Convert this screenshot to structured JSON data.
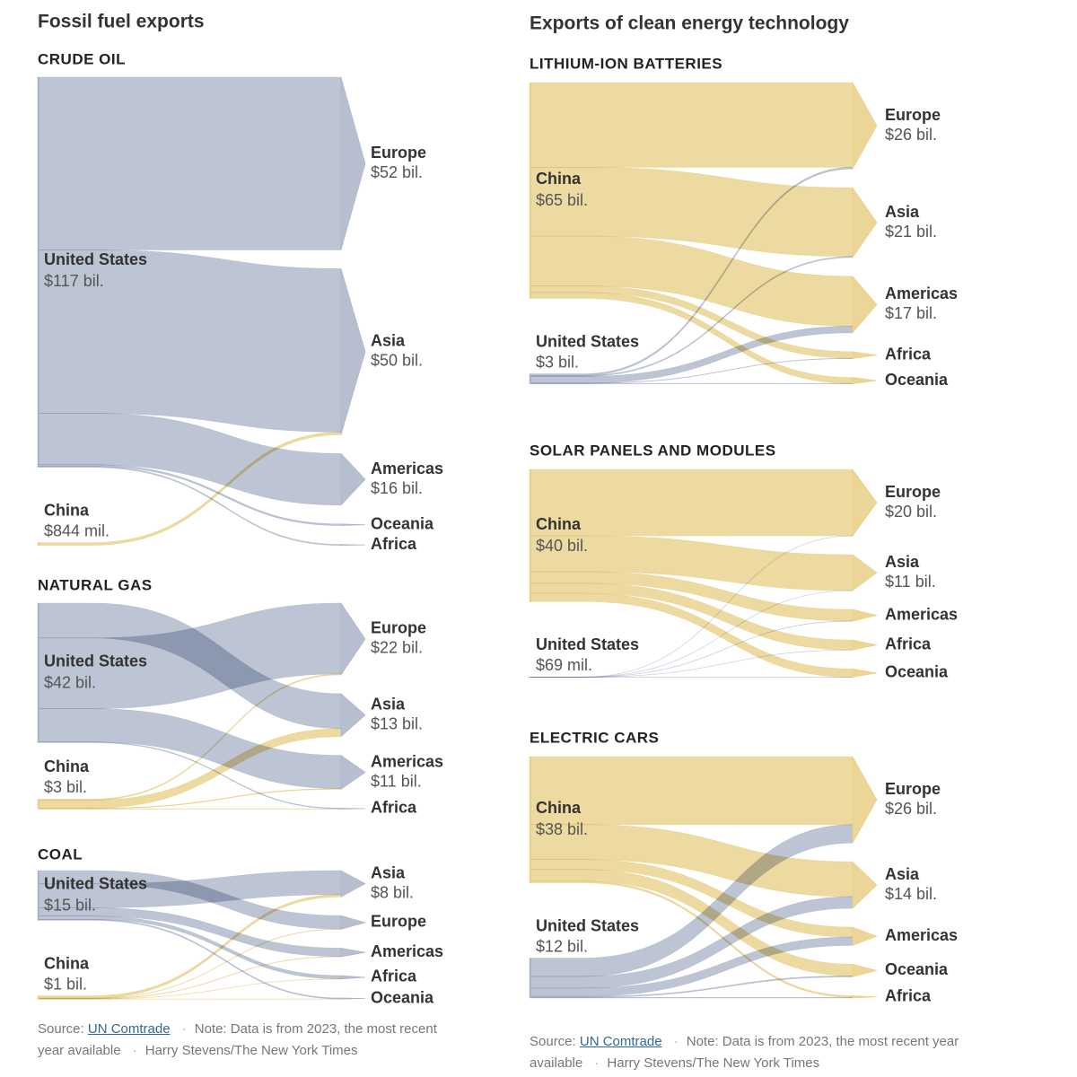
{
  "headings": [
    "Fossil fuel exports",
    "Exports of clean energy technology"
  ],
  "notes": [
    {
      "source_label": "Source:",
      "source": "UN Comtrade",
      "note": "Note: Data is from 2023, the most recent year available",
      "credit": "Harry Stevens/The New York Times"
    },
    {
      "source_label": "Source:",
      "source": "UN Comtrade",
      "note": "Note: Data is from 2023, the most recent year available",
      "credit": "Harry Stevens/The New York Times"
    }
  ],
  "chart_data": [
    {
      "type": "sankey",
      "title": "CRUDE OIL",
      "sources": [
        {
          "name": "United States",
          "value": 117,
          "label": "$117 bil.",
          "color": "#aab3c8"
        },
        {
          "name": "China",
          "value": 0.844,
          "label": "$844 mil.",
          "color": "#e8cf86"
        }
      ],
      "targets": [
        {
          "name": "Europe",
          "value": 52,
          "label": "$52 bil."
        },
        {
          "name": "Asia",
          "value": 50,
          "label": "$50 bil."
        },
        {
          "name": "Americas",
          "value": 16,
          "label": "$16 bil."
        },
        {
          "name": "Oceania"
        },
        {
          "name": "Africa"
        }
      ],
      "flows": [
        {
          "source": "United States",
          "target": "Europe",
          "value": 52
        },
        {
          "source": "United States",
          "target": "Asia",
          "value": 49.2
        },
        {
          "source": "United States",
          "target": "Americas",
          "value": 15.5
        },
        {
          "source": "United States",
          "target": "Oceania",
          "value": 0.5
        },
        {
          "source": "United States",
          "target": "Africa",
          "value": 0.3
        },
        {
          "source": "China",
          "target": "Asia",
          "value": 0.8
        }
      ]
    },
    {
      "type": "sankey",
      "title": "NATURAL GAS",
      "sources": [
        {
          "name": "United States",
          "value": 42,
          "label": "$42 bil.",
          "color": "#aab3c8"
        },
        {
          "name": "China",
          "value": 3,
          "label": "$3 bil.",
          "color": "#e8cf86"
        }
      ],
      "targets": [
        {
          "name": "Europe",
          "value": 22,
          "label": "$22 bil."
        },
        {
          "name": "Asia",
          "value": 13,
          "label": "$13 bil."
        },
        {
          "name": "Americas",
          "value": 11,
          "label": "$11 bil."
        },
        {
          "name": "Africa"
        }
      ],
      "flows": [
        {
          "source": "United States",
          "target": "Asia",
          "value": 10.5
        },
        {
          "source": "United States",
          "target": "Europe",
          "value": 21.3
        },
        {
          "source": "United States",
          "target": "Americas",
          "value": 10
        },
        {
          "source": "United States",
          "target": "Africa",
          "value": 0.2
        },
        {
          "source": "China",
          "target": "Europe",
          "value": 0.3
        },
        {
          "source": "China",
          "target": "Asia",
          "value": 2.4
        },
        {
          "source": "China",
          "target": "Americas",
          "value": 0.2
        },
        {
          "source": "China",
          "target": "Africa",
          "value": 0.1
        }
      ]
    },
    {
      "type": "sankey",
      "title": "COAL",
      "sources": [
        {
          "name": "United States",
          "value": 15,
          "label": "$15 bil.",
          "color": "#aab3c8"
        },
        {
          "name": "China",
          "value": 1,
          "label": "$1 bil.",
          "color": "#e8cf86"
        }
      ],
      "targets": [
        {
          "name": "Asia",
          "value": 8,
          "label": "$8 bil."
        },
        {
          "name": "Europe"
        },
        {
          "name": "Americas"
        },
        {
          "name": "Africa"
        },
        {
          "name": "Oceania"
        }
      ],
      "flows": [
        {
          "source": "United States",
          "target": "Europe",
          "value": 4
        },
        {
          "source": "United States",
          "target": "Asia",
          "value": 7.2
        },
        {
          "source": "United States",
          "target": "Americas",
          "value": 2.5
        },
        {
          "source": "United States",
          "target": "Africa",
          "value": 1
        },
        {
          "source": "United States",
          "target": "Oceania",
          "value": 0.3
        },
        {
          "source": "China",
          "target": "Asia",
          "value": 0.7
        },
        {
          "source": "China",
          "target": "Europe",
          "value": 0.1
        },
        {
          "source": "China",
          "target": "Americas",
          "value": 0.1
        },
        {
          "source": "China",
          "target": "Africa",
          "value": 0.05
        },
        {
          "source": "China",
          "target": "Oceania",
          "value": 0.05
        }
      ]
    },
    {
      "type": "sankey",
      "title": "LITHIUM-ION BATTERIES",
      "sources": [
        {
          "name": "China",
          "value": 65,
          "label": "$65 bil.",
          "color": "#e8cf86"
        },
        {
          "name": "United States",
          "value": 3,
          "label": "$3 bil.",
          "color": "#aab3c8"
        }
      ],
      "targets": [
        {
          "name": "Europe",
          "value": 26,
          "label": "$26 bil."
        },
        {
          "name": "Asia",
          "value": 21,
          "label": "$21 bil."
        },
        {
          "name": "Americas",
          "value": 17,
          "label": "$17 bil."
        },
        {
          "name": "Africa"
        },
        {
          "name": "Oceania"
        }
      ],
      "flows": [
        {
          "source": "China",
          "target": "Europe",
          "value": 25.5
        },
        {
          "source": "China",
          "target": "Asia",
          "value": 20.7
        },
        {
          "source": "China",
          "target": "Americas",
          "value": 15
        },
        {
          "source": "China",
          "target": "Africa",
          "value": 2
        },
        {
          "source": "China",
          "target": "Oceania",
          "value": 1.8
        },
        {
          "source": "United States",
          "target": "Europe",
          "value": 0.5
        },
        {
          "source": "United States",
          "target": "Asia",
          "value": 0.3
        },
        {
          "source": "United States",
          "target": "Americas",
          "value": 2
        },
        {
          "source": "United States",
          "target": "Africa",
          "value": 0.1
        },
        {
          "source": "United States",
          "target": "Oceania",
          "value": 0.1
        }
      ]
    },
    {
      "type": "sankey",
      "title": "SOLAR PANELS AND MODULES",
      "sources": [
        {
          "name": "China",
          "value": 40,
          "label": "$40 bil.",
          "color": "#e8cf86"
        },
        {
          "name": "United States",
          "value": 0.069,
          "label": "$69 mil.",
          "color": "#aab3c8"
        }
      ],
      "targets": [
        {
          "name": "Europe",
          "value": 20,
          "label": "$20 bil."
        },
        {
          "name": "Asia",
          "value": 11,
          "label": "$11 bil."
        },
        {
          "name": "Americas"
        },
        {
          "name": "Africa"
        },
        {
          "name": "Oceania"
        }
      ],
      "flows": [
        {
          "source": "China",
          "target": "Europe",
          "value": 20
        },
        {
          "source": "China",
          "target": "Asia",
          "value": 10.8
        },
        {
          "source": "China",
          "target": "Americas",
          "value": 3.5
        },
        {
          "source": "China",
          "target": "Africa",
          "value": 3
        },
        {
          "source": "China",
          "target": "Oceania",
          "value": 2.5
        },
        {
          "source": "United States",
          "target": "Europe",
          "value": 0.01
        },
        {
          "source": "United States",
          "target": "Asia",
          "value": 0.01
        },
        {
          "source": "United States",
          "target": "Americas",
          "value": 0.03
        },
        {
          "source": "United States",
          "target": "Africa",
          "value": 0.01
        },
        {
          "source": "United States",
          "target": "Oceania",
          "value": 0.01
        }
      ]
    },
    {
      "type": "sankey",
      "title": "ELECTRIC CARS",
      "sources": [
        {
          "name": "China",
          "value": 38,
          "label": "$38 bil.",
          "color": "#e8cf86"
        },
        {
          "name": "United States",
          "value": 12,
          "label": "$12 bil.",
          "color": "#aab3c8"
        }
      ],
      "targets": [
        {
          "name": "Europe",
          "value": 26,
          "label": "$26 bil."
        },
        {
          "name": "Asia",
          "value": 14,
          "label": "$14 bil."
        },
        {
          "name": "Americas"
        },
        {
          "name": "Oceania"
        },
        {
          "name": "Africa"
        }
      ],
      "flows": [
        {
          "source": "China",
          "target": "Europe",
          "value": 20.5
        },
        {
          "source": "China",
          "target": "Asia",
          "value": 10.5
        },
        {
          "source": "China",
          "target": "Americas",
          "value": 3
        },
        {
          "source": "China",
          "target": "Oceania",
          "value": 3.5
        },
        {
          "source": "China",
          "target": "Africa",
          "value": 0.5
        },
        {
          "source": "United States",
          "target": "Europe",
          "value": 5.5
        },
        {
          "source": "United States",
          "target": "Asia",
          "value": 3.5
        },
        {
          "source": "United States",
          "target": "Americas",
          "value": 2.5
        },
        {
          "source": "United States",
          "target": "Oceania",
          "value": 0.3
        },
        {
          "source": "United States",
          "target": "Africa",
          "value": 0.2
        }
      ]
    }
  ]
}
